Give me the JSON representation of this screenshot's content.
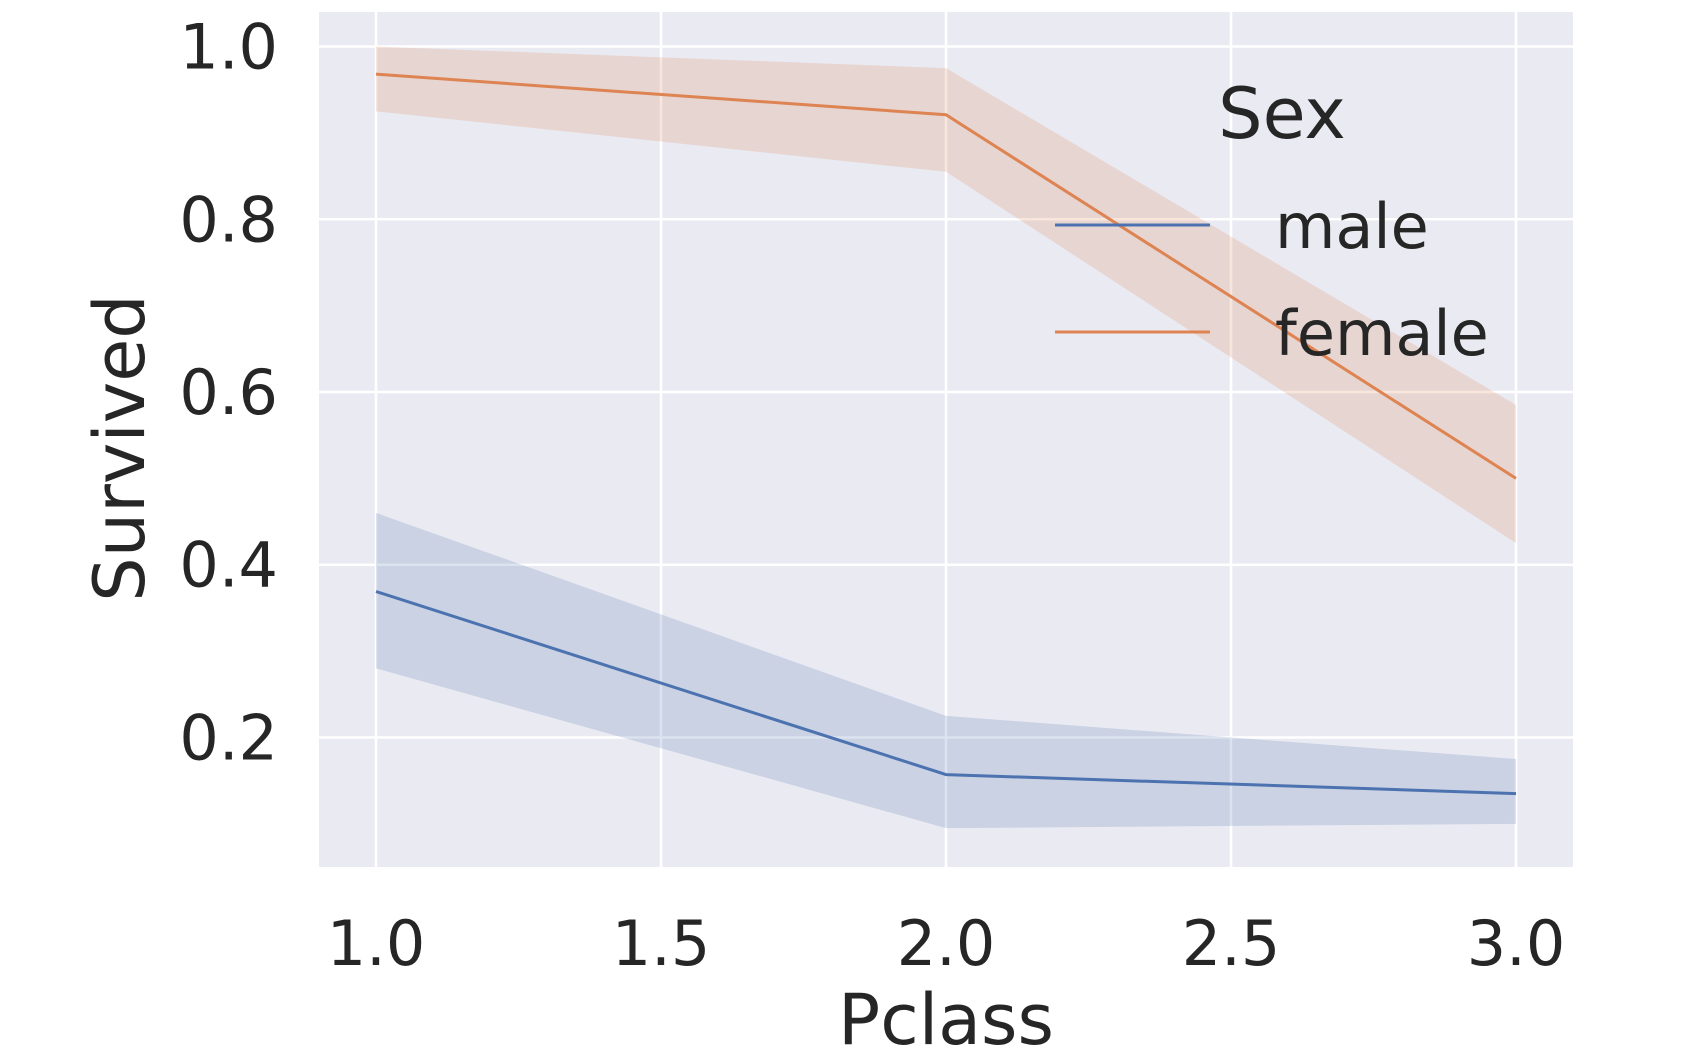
{
  "chart_data": {
    "type": "line",
    "xlabel": "Pclass",
    "ylabel": "Survived",
    "xlim": [
      0.9,
      3.1
    ],
    "ylim": [
      0.05,
      1.04
    ],
    "xticks": [
      1.0,
      1.5,
      2.0,
      2.5,
      3.0
    ],
    "xtick_labels": [
      "1.0",
      "1.5",
      "2.0",
      "2.5",
      "3.0"
    ],
    "yticks": [
      0.2,
      0.4,
      0.6,
      0.8,
      1.0
    ],
    "ytick_labels": [
      "0.2",
      "0.4",
      "0.6",
      "0.8",
      "1.0"
    ],
    "grid": true,
    "background": "#eaeaf2",
    "legend": {
      "title": "Sex",
      "placement": "top-right"
    },
    "x": [
      1.0,
      2.0,
      3.0
    ],
    "series": [
      {
        "name": "male",
        "color": "#4c72b0",
        "values": [
          0.369,
          0.157,
          0.135
        ],
        "ci_lower": [
          0.28,
          0.095,
          0.1
        ],
        "ci_upper": [
          0.46,
          0.225,
          0.175
        ]
      },
      {
        "name": "female",
        "color": "#dd8452",
        "values": [
          0.968,
          0.921,
          0.5
        ],
        "ci_lower": [
          0.925,
          0.855,
          0.425
        ],
        "ci_upper": [
          1.0,
          0.975,
          0.585
        ]
      }
    ]
  }
}
